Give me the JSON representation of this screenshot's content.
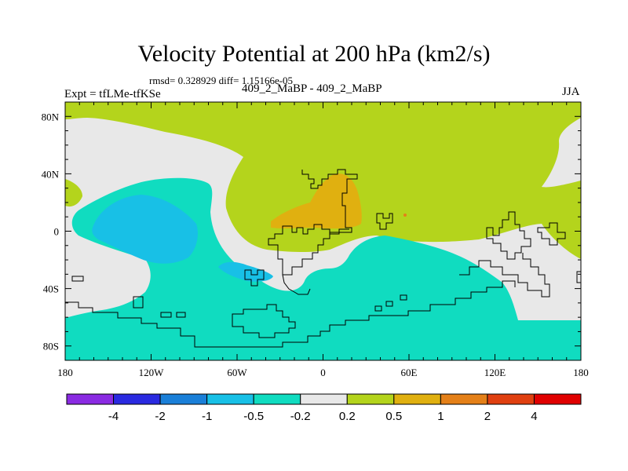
{
  "title": "Velocity Potential at 200 hPa (km2/s)",
  "stats_line": "rmsd= 0.328929 diff= 1.15166e-05",
  "left_label": "Expt = tfLMe-tfKSe",
  "center_label": "409_2_MaBP - 409_2_MaBP",
  "right_label": "JJA",
  "axes": {
    "x_ticks": [
      "180",
      "120W",
      "60W",
      "0",
      "60E",
      "120E",
      "180"
    ],
    "y_ticks": [
      "80N",
      "40N",
      "0",
      "40S",
      "80S"
    ]
  },
  "colorbar": {
    "colors": [
      "#8a2be2",
      "#2a2ae0",
      "#1a7fd8",
      "#18c0e6",
      "#10dcc0",
      "#e8e8e8",
      "#b4d41c",
      "#e0b010",
      "#e48018",
      "#e04010",
      "#e00000"
    ],
    "labels": [
      "-4",
      "-2",
      "-1",
      "-0.5",
      "-0.2",
      "0.2",
      "0.5",
      "1",
      "2",
      "4"
    ]
  },
  "colors": {
    "neutral": "#e8e8e8",
    "positive_low": "#b4d41c",
    "positive_mid": "#e0b010",
    "positive_high": "#e48018",
    "negative_low": "#10dcc0",
    "negative_mid": "#18c0e6",
    "negative_high": "#1a7fd8",
    "coast": "#000000"
  }
}
